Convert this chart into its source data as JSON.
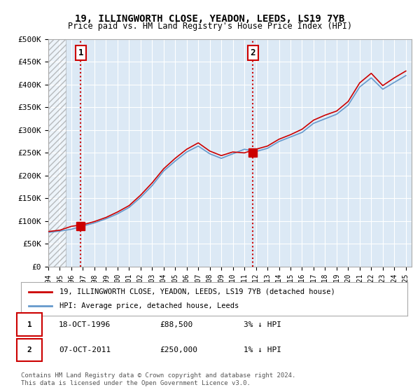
{
  "title_line1": "19, ILLINGWORTH CLOSE, YEADON, LEEDS, LS19 7YB",
  "title_line2": "Price paid vs. HM Land Registry's House Price Index (HPI)",
  "ylabel": "",
  "xlabel": "",
  "ylim": [
    0,
    500000
  ],
  "yticks": [
    0,
    50000,
    100000,
    150000,
    200000,
    250000,
    300000,
    350000,
    400000,
    450000,
    500000
  ],
  "ytick_labels": [
    "£0",
    "£50K",
    "£100K",
    "£150K",
    "£200K",
    "£250K",
    "£300K",
    "£350K",
    "£400K",
    "£450K",
    "£500K"
  ],
  "xlim_start": 1994.0,
  "xlim_end": 2025.5,
  "plot_bg": "#dce9f5",
  "hatch_end_year": 1995.5,
  "sale1_year": 1996.8,
  "sale1_price": 88500,
  "sale2_year": 2011.75,
  "sale2_price": 250000,
  "legend_line1": "19, ILLINGWORTH CLOSE, YEADON, LEEDS, LS19 7YB (detached house)",
  "legend_line2": "HPI: Average price, detached house, Leeds",
  "annot1_num": "1",
  "annot1_date": "18-OCT-1996",
  "annot1_price": "£88,500",
  "annot1_hpi": "3% ↓ HPI",
  "annot2_num": "2",
  "annot2_date": "07-OCT-2011",
  "annot2_price": "£250,000",
  "annot2_hpi": "1% ↓ HPI",
  "footer": "Contains HM Land Registry data © Crown copyright and database right 2024.\nThis data is licensed under the Open Government Licence v3.0.",
  "red_color": "#cc0000",
  "blue_color": "#6699cc",
  "hpi_years": [
    1994,
    1995,
    1996,
    1997,
    1998,
    1999,
    2000,
    2001,
    2002,
    2003,
    2004,
    2005,
    2006,
    2007,
    2008,
    2009,
    2010,
    2011,
    2012,
    2013,
    2014,
    2015,
    2016,
    2017,
    2018,
    2019,
    2020,
    2021,
    2022,
    2023,
    2024,
    2025
  ],
  "hpi_values": [
    75000,
    78000,
    82000,
    89000,
    96000,
    105000,
    116000,
    130000,
    152000,
    178000,
    210000,
    232000,
    252000,
    265000,
    248000,
    238000,
    248000,
    258000,
    253000,
    260000,
    275000,
    285000,
    295000,
    315000,
    325000,
    335000,
    355000,
    395000,
    415000,
    390000,
    405000,
    420000
  ],
  "price_years": [
    1994,
    1995,
    1996,
    1997,
    1998,
    1999,
    2000,
    2001,
    2002,
    2003,
    2004,
    2005,
    2006,
    2007,
    2008,
    2009,
    2010,
    2011,
    2012,
    2013,
    2014,
    2015,
    2016,
    2017,
    2018,
    2019,
    2020,
    2021,
    2022,
    2023,
    2024,
    2025
  ],
  "price_values": [
    77000,
    80000,
    88500,
    92000,
    99000,
    108000,
    120000,
    134000,
    157000,
    184000,
    215000,
    238000,
    258000,
    272000,
    254000,
    244000,
    252000,
    250000,
    258000,
    265000,
    280000,
    290000,
    302000,
    322000,
    333000,
    342000,
    363000,
    404000,
    425000,
    398000,
    415000,
    430000
  ]
}
